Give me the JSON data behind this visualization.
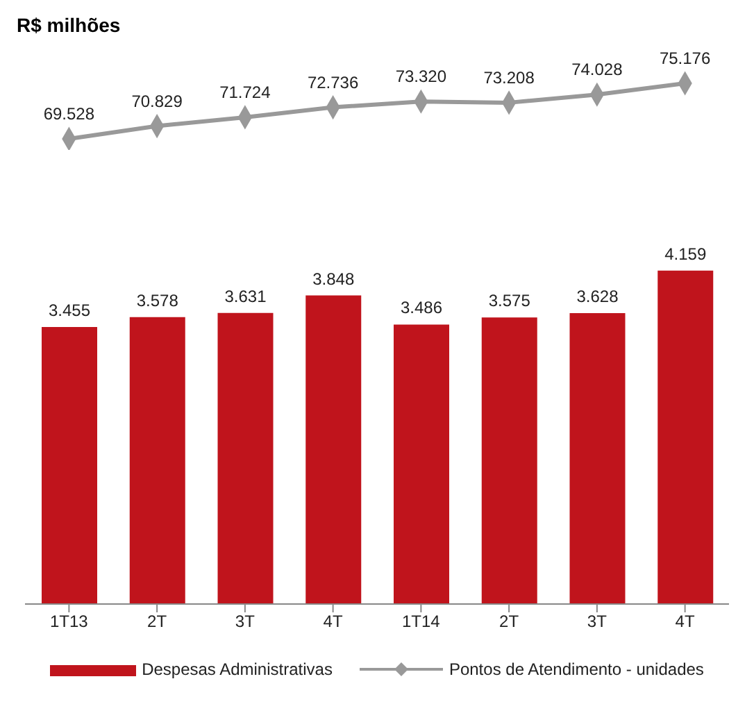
{
  "chart_data": [
    {
      "type": "line",
      "title": "R$ milhões",
      "categories": [
        null,
        null,
        null,
        null,
        null,
        null,
        null,
        null
      ],
      "series": [
        {
          "name": "Pontos de Atendimento - unidades",
          "color": "#999999",
          "values": [
            69528,
            70829,
            71724,
            72736,
            73320,
            73208,
            74028,
            75176
          ],
          "value_labels": [
            "69.528",
            "70.829",
            "71.724",
            "72.736",
            "73.320",
            "73.208",
            "74.028",
            "75.176"
          ]
        }
      ],
      "marker": "diamond",
      "tick_labels": false,
      "legend": "bottom",
      "grid": false
    },
    {
      "type": "bar",
      "categories": [
        "1T13",
        "2T",
        "3T",
        "4T",
        "1T14",
        "2T",
        "3T",
        "4T"
      ],
      "series": [
        {
          "name": "Despesas Administrativas",
          "color": "#c0141c",
          "values": [
            3455,
            3578,
            3631,
            3848,
            3486,
            3575,
            3628,
            4159
          ],
          "value_labels": [
            "3.455",
            "3.578",
            "3.631",
            "3.848",
            "3.486",
            "3.575",
            "3.628",
            "4.159"
          ]
        }
      ],
      "tick_labels": "x",
      "legend": "bottom",
      "grid": false
    }
  ]
}
